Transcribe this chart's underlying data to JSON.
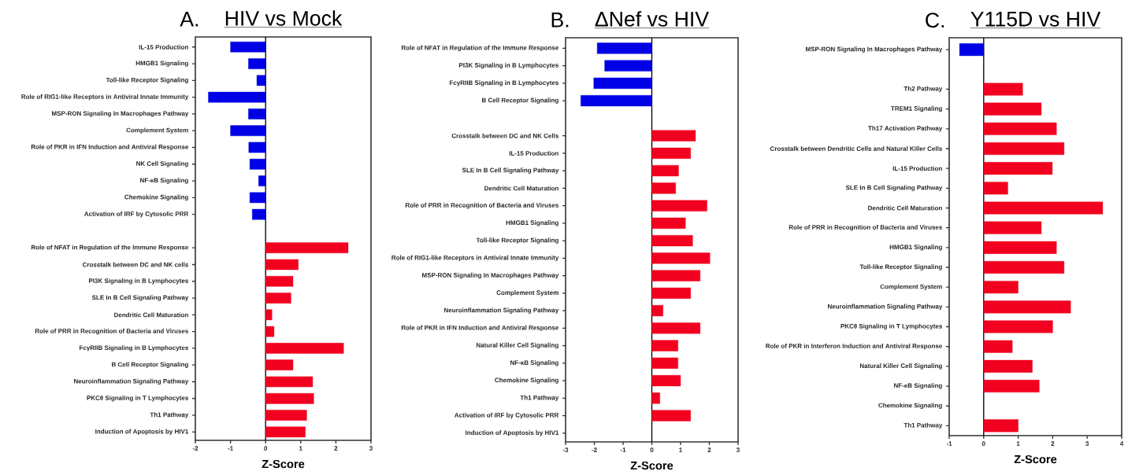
{
  "chart_data": [
    {
      "type": "bar",
      "orientation": "horizontal",
      "title": "HIV vs Mock",
      "annotations": [
        "A."
      ],
      "xlabel": "Z-Score",
      "categories": [
        "IL-15 Production",
        "HMGB1 Signaling",
        "Toll-like Receptor Signaling",
        "Role of RIG1-like Receptors in Antiviral Innate Immunity",
        "MSP-RON Signaling In Macrophages Pathway",
        "Complement System",
        "Role of PKR in IFN Induction and Antiviral Response",
        "NK Cell Signaling",
        "NF-κB Signaling",
        "Chemokine Signaling",
        "Activation of IRF by Cytosolic PRR",
        null,
        "Role of NFAT in Regulation of the Immune Response",
        "Crosstalk between DC and NK cells",
        "PI3K Signaling in B Lymphocytes",
        "SLE In B Cell Signaling Pathway",
        "Dendritic Cell Maturation",
        "Role of PRR in Recognition of Bacteria and Viruses",
        "FcγRIIB Signaling in B Lymphocytes",
        "B Cell Receptor Signaling",
        "Neuroinflammation Signaling Pathway",
        "PKCθ Signaling in T Lymphocytes",
        "Th1 Pathway",
        "Induction of Apoptosis by HIV1"
      ],
      "values": [
        -1.0,
        -0.49,
        -0.25,
        -1.63,
        -0.49,
        -1.0,
        -0.48,
        -0.45,
        -0.2,
        -0.45,
        -0.38,
        null,
        2.35,
        0.93,
        0.78,
        0.72,
        0.18,
        0.24,
        2.22,
        0.78,
        1.34,
        1.37,
        1.17,
        1.13
      ],
      "colors": [
        "#0000e6",
        "#0000e6",
        "#0000e6",
        "#0000e6",
        "#0000e6",
        "#0000e6",
        "#0000e6",
        "#0000e6",
        "#0000e6",
        "#0000e6",
        "#0000e6",
        "#0000e6",
        "#f2001f",
        "#f2001f",
        "#f2001f",
        "#f2001f",
        "#f2001f",
        "#f2001f",
        "#f2001f",
        "#f2001f",
        "#f2001f",
        "#f2001f",
        "#f2001f",
        "#f2001f"
      ],
      "xlim": [
        -2,
        3
      ],
      "xticks": [
        -2,
        -1,
        0,
        1,
        2,
        3
      ],
      "ref_lines": [
        {
          "axis": "x",
          "value": 0
        }
      ]
    },
    {
      "type": "bar",
      "orientation": "horizontal",
      "title": "ΔNef vs HIV",
      "annotations": [
        "B."
      ],
      "xlabel": "Z-Score",
      "categories": [
        "Role of NFAT in Regulation of the Immune Response",
        "PI3K Signaling in B Lymphocytes",
        "FcγRIIB Signaling in B Lymphocytes",
        "B Cell Receptor Signaling",
        null,
        "Crosstalk between DC and NK Cells",
        "IL-15 Production",
        "SLE In B Cell Signaling Pathway",
        "Dendritic Cell Maturation",
        "Role of PRR in Recognition of Bacteria and Viruses",
        "HMGB1 Signaling",
        "Toll-like Receptor Signaling",
        "Role of RIG1-like Receptors in Antiviral Innate Immunity",
        "MSP-RON Signaling In Macrophages Pathway",
        "Complement System",
        "Neuroinflammation Signaling Pathway",
        "Role of PKR in IFN Induction and Antiviral Response",
        "Natural Killer Cell Signaling",
        "NF-κB Signaling",
        "Chemokine Signaling",
        "Th1 Pathway",
        "Activation of IRF by Cytosolic PRR",
        "Induction of Apoptosis by HIV1"
      ],
      "values": [
        -1.9,
        -1.64,
        -2.02,
        -2.47,
        null,
        1.52,
        1.35,
        0.93,
        0.83,
        1.92,
        1.17,
        1.42,
        2.02,
        1.68,
        1.35,
        0.39,
        1.68,
        0.91,
        0.91,
        1.0,
        0.28,
        1.35,
        null
      ],
      "colors": [
        "#0000e6",
        "#0000e6",
        "#0000e6",
        "#0000e6",
        "#0000e6",
        "#f2001f",
        "#f2001f",
        "#f2001f",
        "#f2001f",
        "#f2001f",
        "#f2001f",
        "#f2001f",
        "#f2001f",
        "#f2001f",
        "#f2001f",
        "#f2001f",
        "#f2001f",
        "#f2001f",
        "#f2001f",
        "#f2001f",
        "#f2001f",
        "#f2001f",
        "#f2001f"
      ],
      "xlim": [
        -3,
        3
      ],
      "xticks": [
        -3,
        -2,
        -1,
        0,
        1,
        2,
        3
      ],
      "ref_lines": [
        {
          "axis": "x",
          "value": 0
        }
      ]
    },
    {
      "type": "bar",
      "orientation": "horizontal",
      "title": "Y115D vs HIV",
      "annotations": [
        "C."
      ],
      "xlabel": "Z-Score",
      "categories": [
        "MSP-RON Signaling In Macrophages Pathway",
        null,
        "Th2 Pathway",
        "TREM1 Signaling",
        "Th17 Activation Pathway",
        "Crosstalk between Dendritic Cells and Natural Killer Cells",
        "IL-15 Production",
        "SLE In B Cell Signaling Pathway",
        "Dendritic Cell Maturation",
        "Role of PRR in Recognition of Bacteria and Viruses",
        "HMGB1 Signaling",
        "Toll-like Receptor Signaling",
        "Complement System",
        "Neuroinflammation Signaling Pathway",
        "PKCθ Signaling in T Lymphocytes",
        "Role of PKR in Interferon Induction and Antiviral Response",
        "Natural Killer Cell Signaling",
        "NF-κB Signaling",
        "Chemokine Signaling",
        "Th1 Pathway"
      ],
      "values": [
        -0.7,
        null,
        1.13,
        1.67,
        2.11,
        2.33,
        1.99,
        0.7,
        3.45,
        1.67,
        2.11,
        2.33,
        1.0,
        2.52,
        2.0,
        0.83,
        1.41,
        1.61,
        null,
        1.0
      ],
      "colors": [
        "#0000e6",
        "#0000e6",
        "#f2001f",
        "#f2001f",
        "#f2001f",
        "#f2001f",
        "#f2001f",
        "#f2001f",
        "#f2001f",
        "#f2001f",
        "#f2001f",
        "#f2001f",
        "#f2001f",
        "#f2001f",
        "#f2001f",
        "#f2001f",
        "#f2001f",
        "#f2001f",
        "#f2001f",
        "#f2001f"
      ],
      "xlim": [
        -1,
        4
      ],
      "xticks": [
        -1,
        0,
        1,
        2,
        3,
        4
      ],
      "ref_lines": [
        {
          "axis": "x",
          "value": 0
        }
      ]
    }
  ]
}
